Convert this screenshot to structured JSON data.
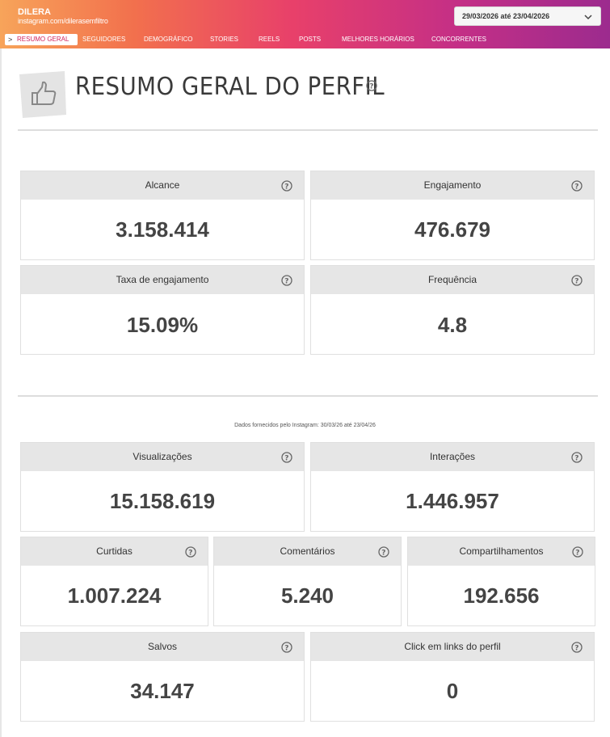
{
  "header": {
    "brand_name": "DILERA",
    "brand_url": "instagram.com/dilerasemfiltro",
    "date_range": "29/03/2026 até 23/04/2026"
  },
  "nav": {
    "items": [
      "RESUMO GERAL",
      "SEGUIDORES",
      "DEMOGRÁFICO",
      "STORIES",
      "REELS",
      "POSTS",
      "MELHORES HORÁRIOS",
      "CONCORRENTES"
    ],
    "active_index": 0
  },
  "page": {
    "title": "RESUMO GERAL DO PERFIL",
    "source_note": "Dados fornecidos pelo Instagram: 30/03/26 até 23/04/26"
  },
  "metrics": {
    "alcance": {
      "label": "Alcance",
      "value": "3.158.414"
    },
    "engajamento": {
      "label": "Engajamento",
      "value": "476.679"
    },
    "taxa": {
      "label": "Taxa de engajamento",
      "value": "15.09%"
    },
    "frequencia": {
      "label": "Frequência",
      "value": "4.8"
    },
    "visualizacoes": {
      "label": "Visualizações",
      "value": "15.158.619"
    },
    "interacoes": {
      "label": "Interações",
      "value": "1.446.957"
    },
    "curtidas": {
      "label": "Curtidas",
      "value": "1.007.224"
    },
    "comentarios": {
      "label": "Comentários",
      "value": "5.240"
    },
    "compartilhamentos": {
      "label": "Compartilhamentos",
      "value": "192.656"
    },
    "salvos": {
      "label": "Salvos",
      "value": "34.147"
    },
    "clicks": {
      "label": "Click em links do perfil",
      "value": "0"
    }
  },
  "icons": {
    "help": "question-circle-icon",
    "title": "thumbs-up-icon",
    "dropdown": "chevron-down-icon",
    "nav_active": "chevron-right-icon"
  },
  "colors": {
    "accent": "#d0245c",
    "card_header": "#e6e6e6"
  }
}
